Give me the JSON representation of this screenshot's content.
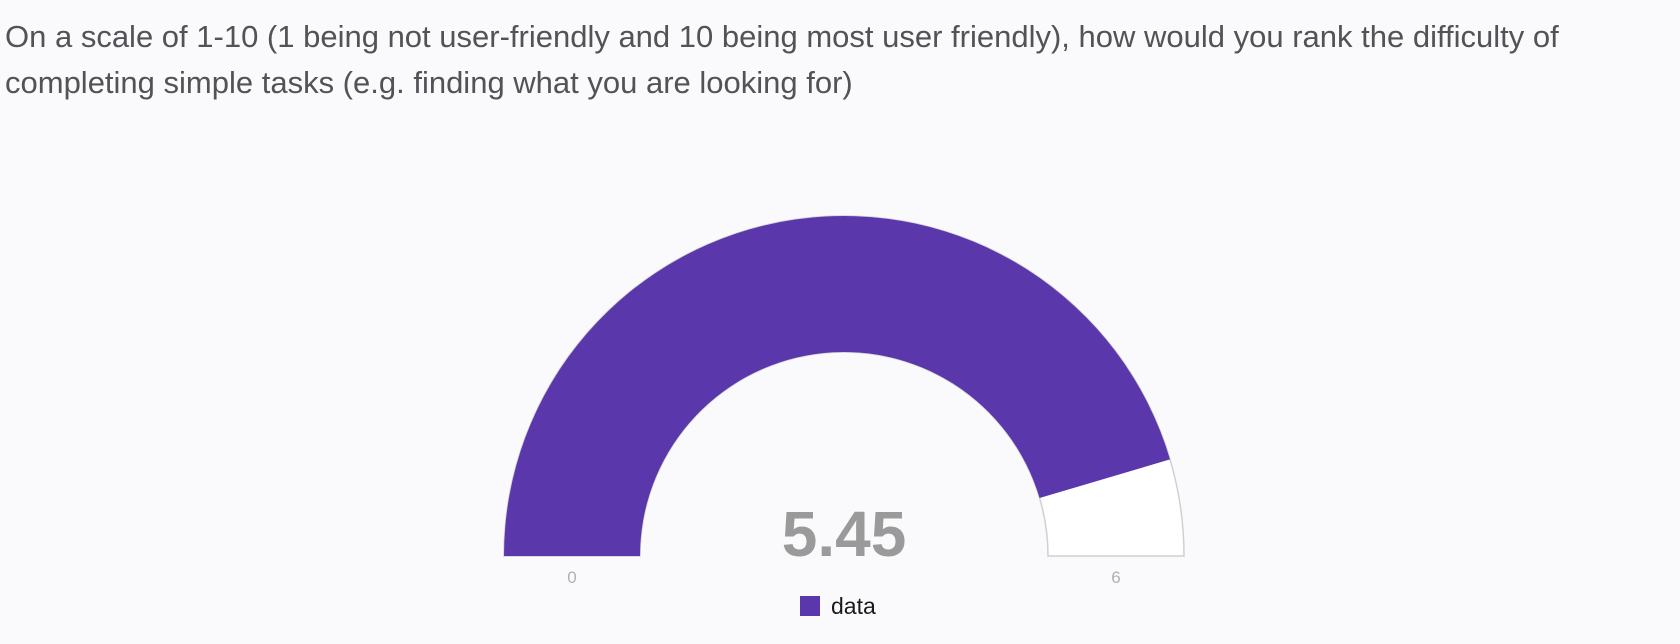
{
  "question": {
    "text": "On a scale of 1-10 (1 being not user-friendly and 10 being most user friendly), how would you rank the difficulty of completing simple tasks (e.g. finding what you are looking for)"
  },
  "chart_data": {
    "type": "gauge",
    "title": "",
    "value": 5.45,
    "value_label": "5.45",
    "min": 0,
    "max": 6,
    "min_label": "0",
    "max_label": "6",
    "series": [
      {
        "name": "data",
        "value": 5.45,
        "color": "#5a37aa"
      }
    ],
    "legend": {
      "position": "bottom-center",
      "entries": [
        "data"
      ]
    },
    "colors": {
      "fill": "#5a37aa",
      "remainder": "#ffffff",
      "remainder_border": "#d0d0d4",
      "value_text": "#9a9a9a",
      "tick_text": "#b0b0b4",
      "legend_text": "#1a1a1a"
    }
  }
}
